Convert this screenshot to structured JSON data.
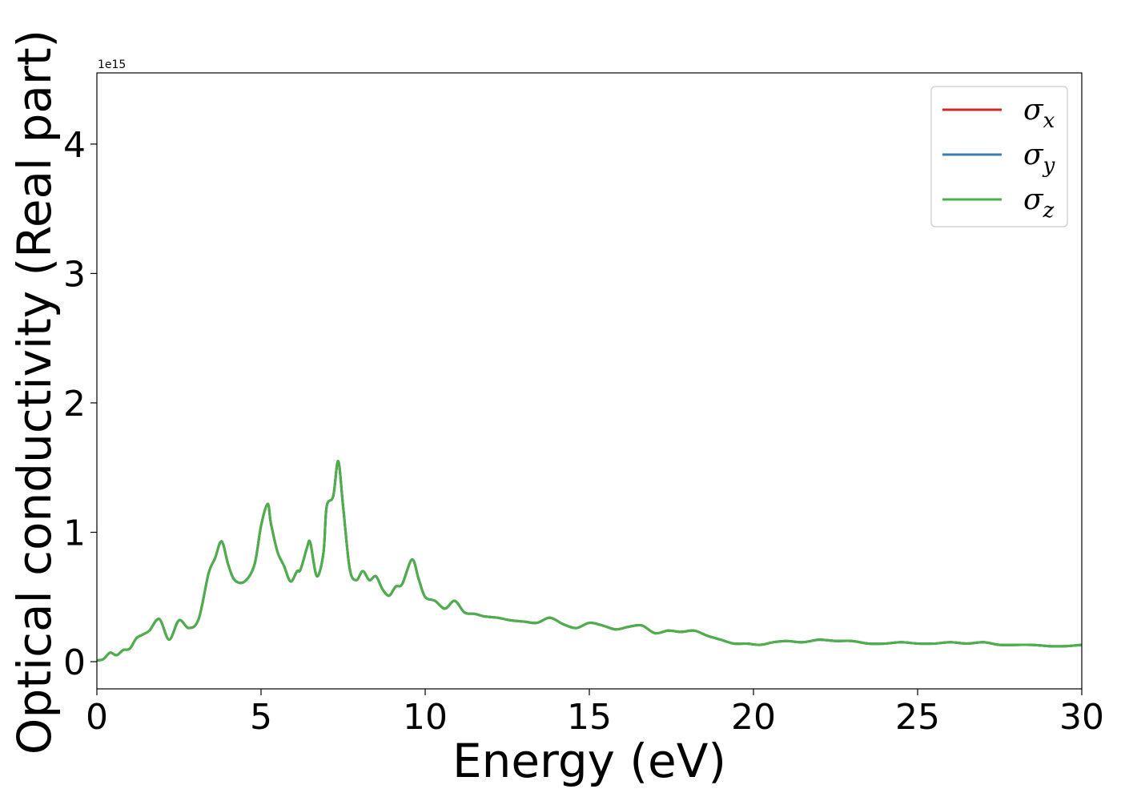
{
  "chart_data": {
    "type": "line",
    "xlabel": "Energy (eV)",
    "ylabel": "Optical conductivity (Real part)",
    "y_offset_text": "1e15",
    "xlim": [
      0,
      30
    ],
    "ylim": [
      -0.21,
      4.55
    ],
    "x_ticks": [
      0,
      5,
      10,
      15,
      20,
      25,
      30
    ],
    "x_tick_labels": [
      "0",
      "5",
      "10",
      "15",
      "20",
      "25",
      "30"
    ],
    "y_ticks": [
      0,
      1,
      2,
      3,
      4
    ],
    "y_tick_labels": [
      "0",
      "1",
      "2",
      "3",
      "4"
    ],
    "grid": false,
    "legend_position": "top-right",
    "legend": [
      {
        "base": "σ",
        "sub": "x",
        "color": "#d62728"
      },
      {
        "base": "σ",
        "sub": "y",
        "color": "#3a7fb5"
      },
      {
        "base": "σ",
        "sub": "z",
        "color": "#4daf4a"
      }
    ],
    "series": [
      {
        "name": "σx",
        "color": "#d62728"
      },
      {
        "name": "σy",
        "color": "#3a7fb5"
      },
      {
        "name": "σz",
        "color": "#4daf4a"
      }
    ],
    "x": [
      0,
      0.2,
      0.4,
      0.6,
      0.8,
      1.0,
      1.2,
      1.4,
      1.6,
      1.9,
      2.2,
      2.5,
      2.8,
      3.1,
      3.4,
      3.6,
      3.8,
      4.0,
      4.2,
      4.5,
      4.8,
      5.0,
      5.2,
      5.3,
      5.5,
      5.7,
      5.9,
      6.1,
      6.2,
      6.4,
      6.5,
      6.7,
      6.9,
      7.0,
      7.2,
      7.35,
      7.5,
      7.7,
      7.9,
      8.1,
      8.3,
      8.5,
      8.7,
      8.9,
      9.1,
      9.3,
      9.6,
      9.8,
      10.0,
      10.3,
      10.6,
      10.9,
      11.2,
      11.5,
      11.8,
      12.2,
      12.6,
      13.0,
      13.4,
      13.8,
      14.2,
      14.6,
      15.0,
      15.4,
      15.8,
      16.2,
      16.6,
      17.0,
      17.4,
      17.8,
      18.2,
      18.6,
      19.0,
      19.4,
      19.8,
      20.2,
      20.6,
      21.0,
      21.5,
      22.0,
      22.5,
      23.0,
      23.5,
      24.0,
      24.5,
      25.0,
      25.5,
      26.0,
      26.5,
      27.0,
      27.5,
      28.0,
      28.5,
      29.0,
      29.5,
      30.0
    ],
    "values": [
      0.01,
      0.02,
      0.07,
      0.05,
      0.09,
      0.1,
      0.18,
      0.21,
      0.24,
      0.33,
      0.17,
      0.32,
      0.26,
      0.33,
      0.68,
      0.8,
      0.93,
      0.75,
      0.63,
      0.62,
      0.75,
      1.05,
      1.22,
      1.07,
      0.85,
      0.74,
      0.62,
      0.7,
      0.71,
      0.88,
      0.92,
      0.66,
      0.84,
      1.2,
      1.28,
      1.55,
      1.2,
      0.72,
      0.63,
      0.7,
      0.63,
      0.66,
      0.56,
      0.51,
      0.58,
      0.6,
      0.79,
      0.64,
      0.5,
      0.47,
      0.41,
      0.47,
      0.38,
      0.37,
      0.35,
      0.34,
      0.32,
      0.31,
      0.3,
      0.34,
      0.29,
      0.26,
      0.3,
      0.28,
      0.25,
      0.27,
      0.28,
      0.22,
      0.24,
      0.23,
      0.24,
      0.2,
      0.17,
      0.14,
      0.14,
      0.13,
      0.15,
      0.16,
      0.15,
      0.17,
      0.16,
      0.16,
      0.14,
      0.14,
      0.15,
      0.14,
      0.14,
      0.15,
      0.14,
      0.15,
      0.13,
      0.13,
      0.13,
      0.12,
      0.12,
      0.13
    ]
  }
}
